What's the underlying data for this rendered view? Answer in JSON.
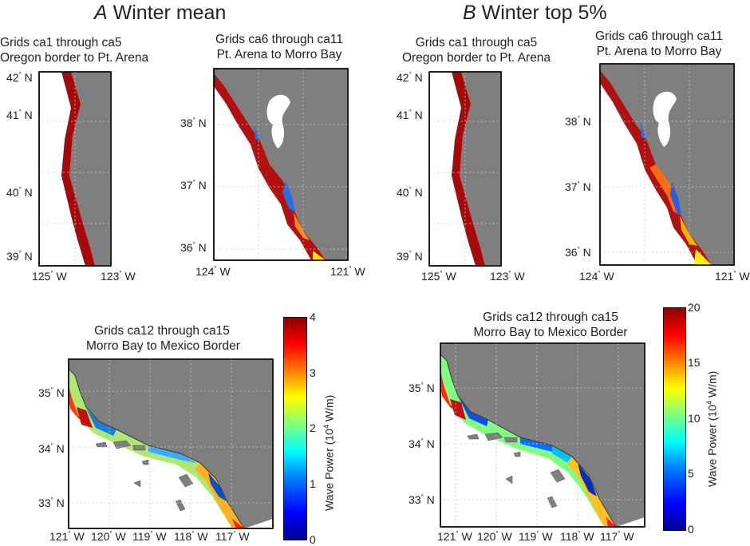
{
  "headers": {
    "a_letter": "A",
    "a_text": "Winter mean",
    "b_letter": "B",
    "b_text": "Winter top 5%"
  },
  "panels": {
    "north_title_1": "Grids ca1 through ca5",
    "north_title_2": "Oregon border to Pt. Arena",
    "central_title_1": "Grids ca6 through ca11",
    "central_title_2": "Pt. Arena to Morro Bay",
    "south_title_1": "Grids ca12 through ca15",
    "south_title_2": "Morro Bay to Mexico Border"
  },
  "ticks": {
    "north_lat": [
      "42",
      "41",
      "40",
      "39"
    ],
    "north_lon": [
      "125",
      "123"
    ],
    "central_lat": [
      "38",
      "37",
      "36"
    ],
    "central_lon": [
      "124",
      "121"
    ],
    "south_lat": [
      "35",
      "34",
      "33"
    ],
    "south_lon": [
      "121",
      "120",
      "119",
      "118",
      "117"
    ],
    "deg": "°",
    "n": "N",
    "w": "W"
  },
  "colorbars": {
    "a_ticks": [
      "4",
      "3",
      "2",
      "1",
      "0"
    ],
    "b_ticks": [
      "20",
      "15",
      "10",
      "5",
      "0"
    ],
    "label_pre": "Wave Power (10",
    "label_exp": "4",
    "label_post": " W/m)"
  },
  "colors": {
    "land": "#7f7f7f",
    "max_power": "#8f0000",
    "min_power": "#00008f"
  }
}
